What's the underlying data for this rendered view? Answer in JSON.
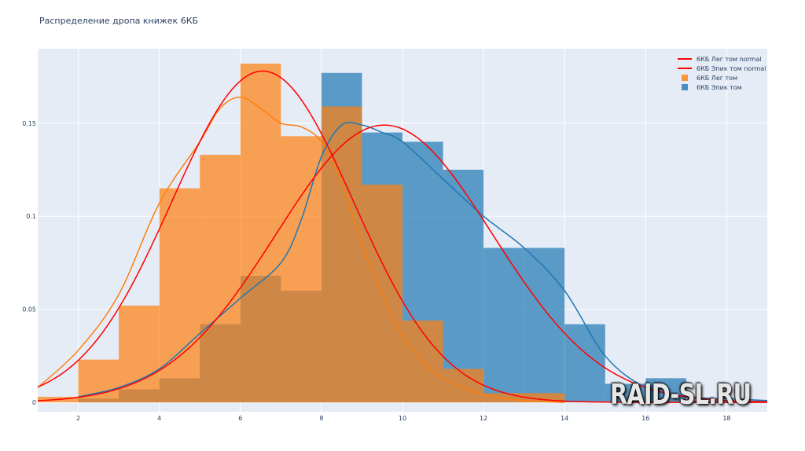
{
  "title": "Распределение дропа книжек 6КБ",
  "watermark": "RAID-SL.RU",
  "chart_data": {
    "type": "bar",
    "title": "Распределение дропа книжек 6КБ",
    "xlabel": "",
    "ylabel": "",
    "xlim": [
      1,
      19
    ],
    "ylim": [
      -0.005,
      0.19
    ],
    "x_ticks": [
      2,
      4,
      6,
      8,
      10,
      12,
      14,
      16,
      18
    ],
    "y_ticks": [
      0,
      0.05,
      0.1,
      0.15
    ],
    "y_tick_labels": [
      "0",
      "0.05",
      "0.1",
      "0.15"
    ],
    "grid": true,
    "legend_position": "top-right",
    "colors": {
      "plot_bg": "#e5ecf6",
      "epic_hist": "#1f77b4",
      "leg_hist": "#ff7f0e",
      "normal": "#ff0000",
      "kde_leg": "#ff7f0e",
      "kde_epic": "#1f77b4"
    },
    "histograms": [
      {
        "name": "6КБ Эпик том",
        "bin_edges": [
          1,
          2,
          3,
          4,
          5,
          6,
          7,
          8,
          9,
          10,
          11,
          12,
          13,
          14,
          15,
          16,
          17,
          18,
          19
        ],
        "values": [
          0,
          0.002,
          0.007,
          0.013,
          0.042,
          0.068,
          0.06,
          0.177,
          0.145,
          0.14,
          0.125,
          0.083,
          0.083,
          0.042,
          0.01,
          0.013,
          0.001,
          0.001
        ],
        "opacity": 0.7
      },
      {
        "name": "6КБ Лег том",
        "bin_edges": [
          1,
          2,
          3,
          4,
          5,
          6,
          7,
          8,
          9,
          10,
          11,
          12,
          13,
          14,
          15,
          16,
          17,
          18,
          19
        ],
        "values": [
          0.003,
          0.023,
          0.052,
          0.115,
          0.133,
          0.182,
          0.143,
          0.159,
          0.117,
          0.044,
          0.018,
          0.005,
          0.005,
          0,
          0,
          0,
          0,
          0
        ],
        "opacity": 0.7
      }
    ],
    "normal_curves": [
      {
        "name": "6КБ Лег том normal",
        "mean": 6.55,
        "sd": 2.24,
        "peak": 0.178
      },
      {
        "name": "6КБ Эпик том normal",
        "mean": 9.55,
        "sd": 2.67,
        "peak": 0.149
      }
    ],
    "kde_curves": [
      {
        "series": "6КБ Лег том",
        "x": [
          1,
          2,
          3,
          4,
          5,
          5.5,
          6,
          6.5,
          7,
          7.5,
          8,
          8.5,
          9,
          9.5,
          10,
          10.5,
          11,
          12,
          13,
          14
        ],
        "y": [
          0.008,
          0.028,
          0.058,
          0.107,
          0.14,
          0.158,
          0.164,
          0.158,
          0.15,
          0.148,
          0.14,
          0.118,
          0.085,
          0.058,
          0.036,
          0.022,
          0.013,
          0.004,
          0.001,
          0
        ]
      },
      {
        "series": "6КБ Эпик том",
        "x": [
          2,
          3,
          4,
          5,
          6,
          7,
          7.5,
          8,
          8.5,
          9,
          9.5,
          10,
          11,
          12,
          13,
          14,
          15,
          16,
          17,
          18,
          19
        ],
        "y": [
          0.003,
          0.008,
          0.018,
          0.037,
          0.056,
          0.075,
          0.098,
          0.132,
          0.149,
          0.149,
          0.145,
          0.14,
          0.12,
          0.1,
          0.083,
          0.06,
          0.025,
          0.008,
          0.003,
          0.002,
          0.001
        ]
      }
    ],
    "legend": [
      {
        "label": "6КБ Лег том normal",
        "kind": "line",
        "color": "#ff0000"
      },
      {
        "label": "6КБ Эпик том normal",
        "kind": "line",
        "color": "#ff0000"
      },
      {
        "label": "6КБ Лег том",
        "kind": "box",
        "color": "#ff7f0e"
      },
      {
        "label": "6КБ Эпик том",
        "kind": "box",
        "color": "#1f77b4"
      }
    ]
  }
}
